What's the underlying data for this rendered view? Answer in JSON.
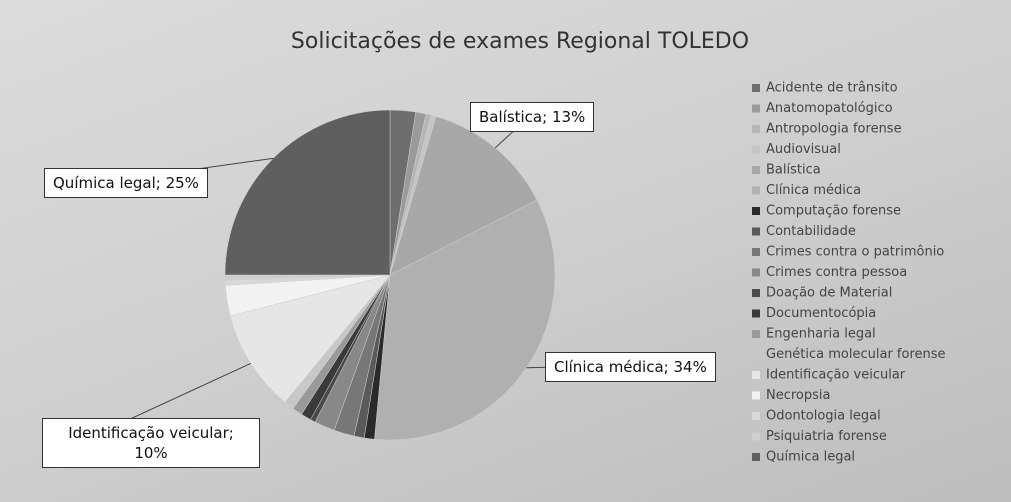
{
  "chart_data": {
    "type": "pie",
    "title": "Solicitações de exames Regional TOLEDO",
    "categories": [
      "Acidente de trânsito",
      "Anatomopatológico",
      "Antropologia forense",
      "Audiovisual",
      "Balística",
      "Clínica médica",
      "Computação forense",
      "Contabilidade",
      "Crimes contra o patrimônio",
      "Crimes contra pessoa",
      "Doação de Material",
      "Documentocópia",
      "Engenharia legal",
      "Genética molecular forense",
      "Identificação veicular",
      "Necropsia",
      "Odontologia legal",
      "Psiquiatria forense",
      "Química legal"
    ],
    "values": [
      2.5,
      1,
      0.5,
      0.5,
      13,
      34,
      1,
      1,
      2,
      2,
      0.5,
      1,
      1,
      1,
      10,
      3,
      0.5,
      0.5,
      25
    ],
    "value_labels": [
      null,
      null,
      null,
      null,
      "Balística; 13%",
      "Clínica médica; 34%",
      null,
      null,
      null,
      null,
      null,
      null,
      null,
      null,
      "Identificação veicular; 10%",
      null,
      null,
      null,
      "Química legal; 25%"
    ],
    "colors": [
      "#6e6e6e",
      "#9a9a9a",
      "#b5b5b5",
      "#c4c4c4",
      "#a8a8a8",
      "#b0b0b0",
      "#2a2a2a",
      "#5a5a5a",
      "#777777",
      "#888888",
      "#4a4a4a",
      "#3a3a3a",
      "#999999",
      "#c8c8c8",
      "#e6e6e6",
      "#f2f2f2",
      "#d8d8d8",
      "#cfcfcf",
      "#5f5f5f"
    ],
    "legend": "right"
  }
}
